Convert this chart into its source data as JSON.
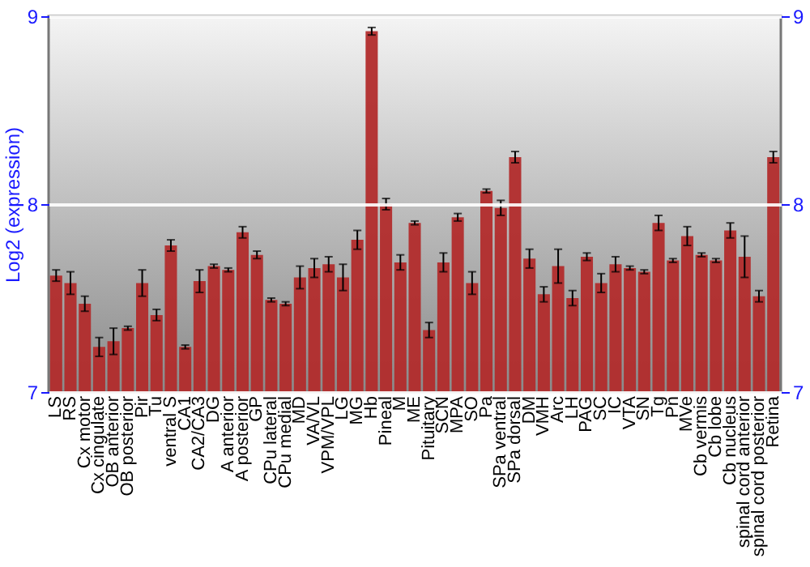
{
  "chart_data": {
    "type": "bar",
    "ylabel": "Log2 (expression)",
    "categories": [
      "LS",
      "RS",
      "Cx motor",
      "Cx cingulate",
      "OB anterior",
      "OB posterior",
      "Pir",
      "Tu",
      "ventral S",
      "CA1",
      "CA2/CA3",
      "DG",
      "A anterior",
      "A posterior",
      "GP",
      "CPu lateral",
      "CPu medial",
      "MD",
      "VA/VL",
      "VPM/VPL",
      "LG",
      "MG",
      "Hb",
      "Pineal",
      "M",
      "ME",
      "Pituitary",
      "SCN",
      "MPA",
      "SO",
      "Pa",
      "SPa ventral",
      "SPa dorsal",
      "DM",
      "VMH",
      "Arc",
      "LH",
      "PAG",
      "SC",
      "IC",
      "VTA",
      "SN",
      "Tg",
      "Pn",
      "MVe",
      "Cb vermis",
      "Cb lobe",
      "Cb nucleus",
      "spinal cord anterior",
      "spinal cord posterior",
      "Retina"
    ],
    "values": [
      7.62,
      7.58,
      7.47,
      7.24,
      7.27,
      7.34,
      7.58,
      7.41,
      7.78,
      7.24,
      7.59,
      7.67,
      7.65,
      7.85,
      7.73,
      7.49,
      7.47,
      7.61,
      7.66,
      7.68,
      7.61,
      7.81,
      8.92,
      8.0,
      7.69,
      7.9,
      7.33,
      7.69,
      7.93,
      7.58,
      8.07,
      7.98,
      8.25,
      7.71,
      7.52,
      7.67,
      7.5,
      7.72,
      7.58,
      7.68,
      7.66,
      7.64,
      7.9,
      7.7,
      7.83,
      7.73,
      7.7,
      7.86,
      7.72,
      7.51,
      8.25
    ],
    "errors": [
      0.03,
      0.06,
      0.04,
      0.05,
      0.07,
      0.01,
      0.07,
      0.03,
      0.03,
      0.01,
      0.06,
      0.01,
      0.01,
      0.03,
      0.02,
      0.01,
      0.01,
      0.06,
      0.05,
      0.04,
      0.07,
      0.05,
      0.02,
      0.03,
      0.04,
      0.01,
      0.04,
      0.05,
      0.02,
      0.06,
      0.01,
      0.04,
      0.03,
      0.05,
      0.04,
      0.09,
      0.04,
      0.02,
      0.05,
      0.04,
      0.01,
      0.01,
      0.04,
      0.01,
      0.05,
      0.01,
      0.01,
      0.04,
      0.11,
      0.03,
      0.03
    ],
    "color": "#b22c2c",
    "ylim": [
      7,
      9
    ],
    "yticks": [
      7,
      8,
      9
    ],
    "y2lim": [
      7,
      9
    ],
    "y2ticks": [
      7,
      8,
      9
    ],
    "grid": "y"
  }
}
